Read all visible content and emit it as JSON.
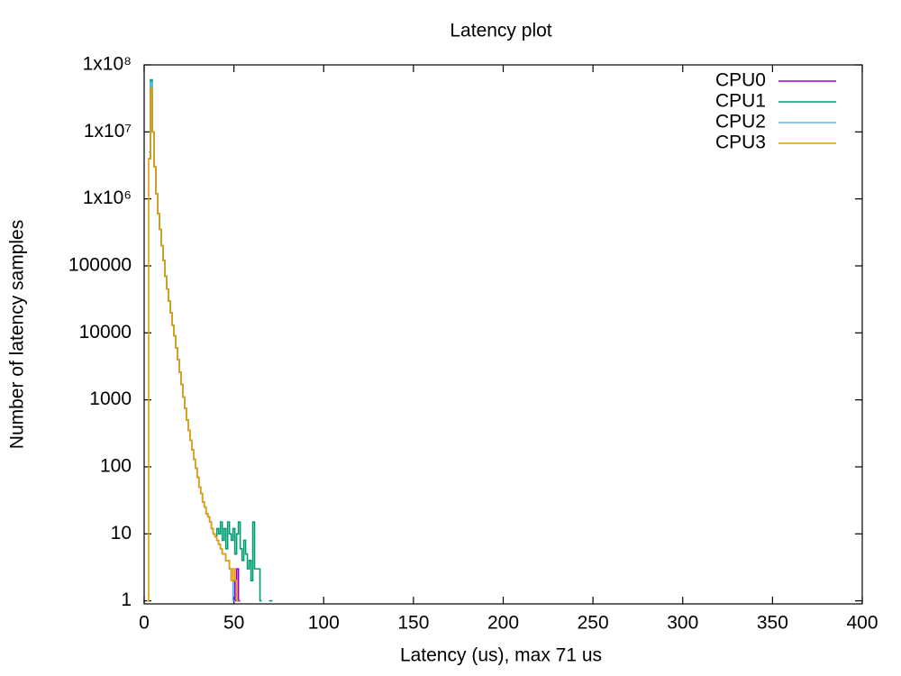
{
  "chart_data": {
    "type": "line",
    "title": "Latency plot",
    "x_label": "Latency (us), max 71 us",
    "y_label": "Number of latency samples",
    "log_y": true,
    "step": true,
    "legend": "top-right",
    "xlim": [
      0,
      400
    ],
    "xticks": [
      0,
      50,
      100,
      150,
      200,
      250,
      300,
      350,
      400
    ],
    "ylim": [
      0.9,
      100000000
    ],
    "yticks": [
      1,
      10,
      100,
      1000,
      10000,
      100000,
      {
        "value": 1000000,
        "label": "1x10⁶"
      },
      {
        "value": 10000000,
        "label": "1x10⁷"
      },
      {
        "value": 100000000,
        "label": "1x10⁸"
      }
    ],
    "x": [
      0,
      1,
      2,
      3,
      4,
      5,
      6,
      7,
      8,
      9,
      10,
      11,
      12,
      13,
      14,
      15,
      16,
      17,
      18,
      19,
      20,
      21,
      22,
      23,
      24,
      25,
      26,
      27,
      28,
      29,
      30,
      31,
      32,
      33,
      34,
      35,
      36,
      37,
      38,
      39,
      40,
      41,
      42,
      43,
      44,
      45,
      46,
      47,
      48,
      49,
      50,
      51,
      52,
      53,
      54,
      55,
      56,
      57,
      58,
      59,
      60,
      61,
      62,
      63,
      64,
      65,
      66,
      67,
      68,
      69,
      70,
      71
    ],
    "series": [
      {
        "name": "CPU0",
        "color": "#9400d3",
        "values": [
          null,
          null,
          null,
          4000000,
          40000000,
          10000000,
          3000000,
          1200000,
          600000,
          350000,
          200000,
          120000,
          70000,
          45000,
          30000,
          20000,
          13000,
          9000,
          6000,
          4000,
          2600,
          1700,
          1100,
          750,
          500,
          350,
          250,
          180,
          130,
          95,
          70,
          50,
          40,
          30,
          25,
          20,
          18,
          15,
          12,
          10,
          9,
          8,
          7,
          6,
          5,
          5,
          4,
          4,
          3,
          2,
          2,
          1,
          3,
          1,
          null,
          null,
          null,
          null,
          null,
          null,
          null,
          null,
          null,
          null,
          null,
          null,
          null,
          null,
          null,
          null,
          null,
          null
        ]
      },
      {
        "name": "CPU1",
        "color": "#009e73",
        "values": [
          null,
          null,
          null,
          4000000,
          60000000,
          10000000,
          3000000,
          1200000,
          600000,
          350000,
          200000,
          120000,
          70000,
          45000,
          30000,
          20000,
          13000,
          9000,
          6000,
          4000,
          2600,
          1700,
          1100,
          750,
          500,
          350,
          250,
          180,
          130,
          95,
          70,
          50,
          40,
          30,
          25,
          20,
          18,
          15,
          12,
          10,
          9,
          12,
          10,
          15,
          8,
          12,
          6,
          15,
          10,
          8,
          12,
          5,
          10,
          15,
          6,
          4,
          8,
          5,
          3,
          4,
          2,
          15,
          3,
          3,
          3,
          1,
          null,
          null,
          null,
          null,
          1,
          1
        ]
      },
      {
        "name": "CPU2",
        "color": "#56b4e9",
        "values": [
          null,
          null,
          null,
          5000000,
          55000000,
          10000000,
          3000000,
          1200000,
          600000,
          350000,
          200000,
          120000,
          70000,
          45000,
          30000,
          20000,
          13000,
          9000,
          6000,
          4000,
          2600,
          1700,
          1100,
          750,
          500,
          350,
          250,
          180,
          130,
          95,
          70,
          50,
          40,
          30,
          25,
          20,
          18,
          15,
          12,
          10,
          9,
          8,
          7,
          6,
          5,
          5,
          4,
          4,
          3,
          2,
          1,
          null,
          null,
          null,
          null,
          null,
          null,
          null,
          null,
          null,
          null,
          null,
          null,
          null,
          null,
          null,
          null,
          null,
          null,
          null,
          null,
          null
        ]
      },
      {
        "name": "CPU3",
        "color": "#e69f00",
        "values": [
          null,
          null,
          1,
          4000000,
          45000000,
          10000000,
          3000000,
          1200000,
          600000,
          350000,
          200000,
          120000,
          70000,
          45000,
          30000,
          20000,
          13000,
          9000,
          6000,
          4000,
          2600,
          1700,
          1100,
          750,
          500,
          350,
          250,
          180,
          130,
          95,
          70,
          50,
          40,
          30,
          25,
          20,
          18,
          15,
          12,
          10,
          9,
          8,
          7,
          6,
          5,
          5,
          4,
          4,
          3,
          2,
          3,
          2,
          1,
          null,
          null,
          null,
          null,
          null,
          null,
          null,
          null,
          null,
          null,
          null,
          null,
          null,
          null,
          null,
          null,
          null,
          null,
          null
        ]
      }
    ]
  }
}
